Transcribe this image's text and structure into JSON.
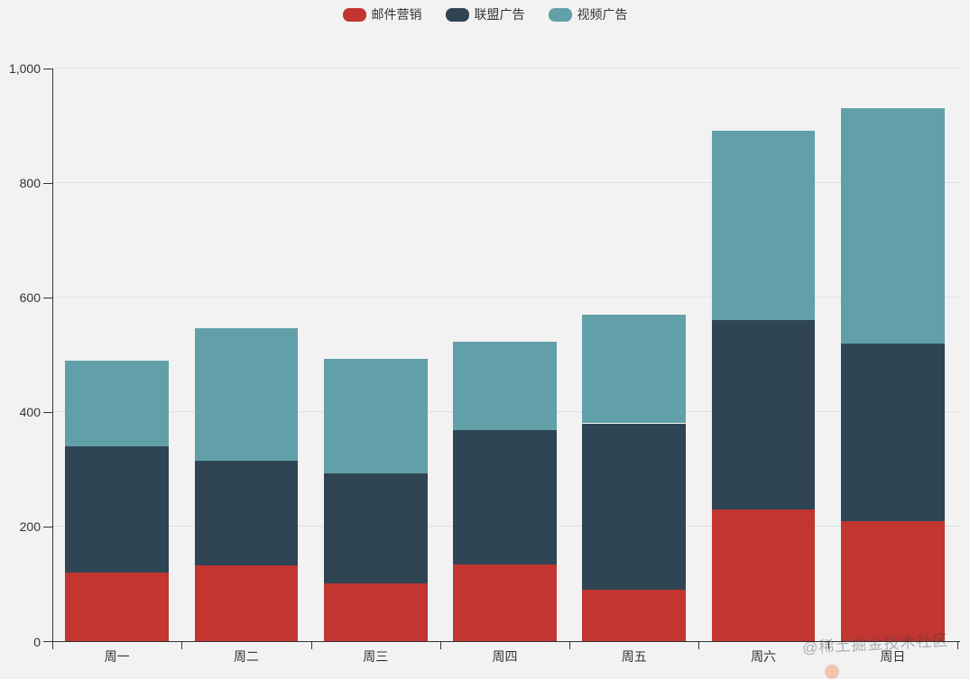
{
  "legend": {
    "items": [
      {
        "label": "邮件营销",
        "color": "#c23531"
      },
      {
        "label": "联盟广告",
        "color": "#2f4554"
      },
      {
        "label": "视频广告",
        "color": "#61a0a8"
      }
    ]
  },
  "chart_data": {
    "type": "bar",
    "stacked": true,
    "title": "",
    "xlabel": "",
    "ylabel": "",
    "categories": [
      "周一",
      "周二",
      "周三",
      "周四",
      "周五",
      "周六",
      "周日"
    ],
    "series": [
      {
        "name": "邮件营销",
        "color": "#c23531",
        "values": [
          120,
          132,
          101,
          134,
          90,
          230,
          210
        ]
      },
      {
        "name": "联盟广告",
        "color": "#2f4554",
        "values": [
          220,
          182,
          191,
          234,
          290,
          330,
          310
        ]
      },
      {
        "name": "视频广告",
        "color": "#61a0a8",
        "values": [
          150,
          232,
          201,
          154,
          190,
          330,
          410
        ]
      }
    ],
    "stack_totals": [
      490,
      546,
      493,
      522,
      570,
      890,
      930
    ],
    "ylim": [
      0,
      1000
    ],
    "ytick_interval": 200,
    "ytick_labels": [
      "0",
      "200",
      "400",
      "600",
      "800",
      "1,000"
    ],
    "grid": true,
    "legend_position": "top-center"
  },
  "colors": {
    "background": "#f2f2f2",
    "gridline": "#e0e0e0",
    "axis": "#333333",
    "label": "#333333",
    "watermark_dot": "#f0956a"
  },
  "watermark": {
    "text": "@稀土掘金技术社区"
  }
}
